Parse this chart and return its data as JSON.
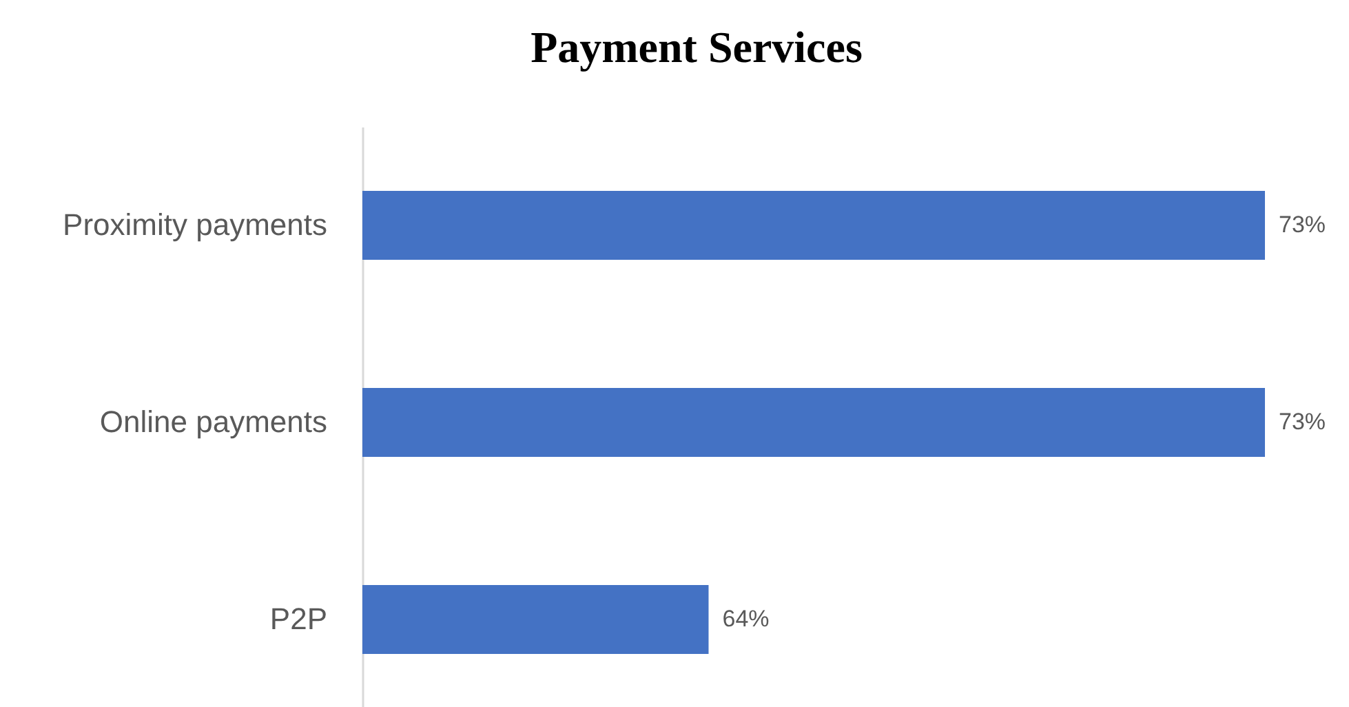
{
  "chart_data": {
    "type": "bar",
    "orientation": "horizontal",
    "title": "Payment Services",
    "categories": [
      "Proximity payments",
      "Online payments",
      "P2P"
    ],
    "values": [
      73,
      73,
      64
    ],
    "value_labels": [
      "73%",
      "73%",
      "64%"
    ],
    "color": "#4472c4",
    "xlim": [
      58.4,
      73
    ],
    "tick_labels": "y"
  }
}
